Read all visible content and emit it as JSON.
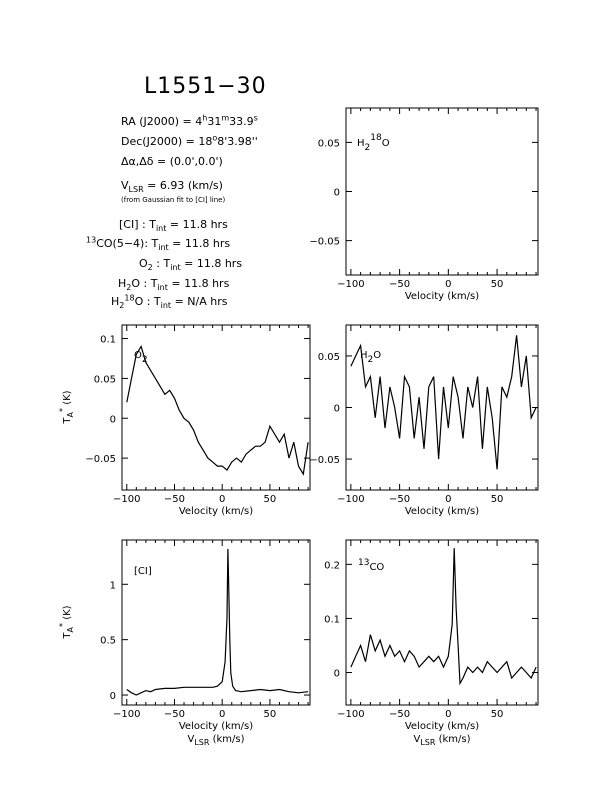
{
  "header": {
    "source_name": "L1551−30",
    "ra": "RA (J2000) = 4h31m33.9s",
    "dec": "Dec(J2000) = 18°8'3.98''",
    "offset": "Δα,Δδ = (0.0',0.0')",
    "vlsr": "VLSR = 6.93 (km/s)",
    "vlsr_note": "(from Gaussian fit to [CI] line)",
    "integrations": [
      "[CI] : Tint = 11.8 hrs",
      "13CO(5−4): Tint = 11.8 hrs",
      "O2 : Tint = 11.8 hrs",
      "H2O : Tint = 11.8 hrs",
      "H2 18O : Tint = N/A hrs"
    ]
  },
  "axis_labels": {
    "velocity": "Velocity (km/s)",
    "vlsr": "VLSR (km/s)",
    "ta": "TA* (K)"
  },
  "chart_data": [
    {
      "type": "line",
      "panel": "h218o",
      "label": "H2 18O",
      "x_ticks": [
        -100,
        -50,
        0,
        50
      ],
      "y_ticks": [
        0.05,
        0,
        -0.05
      ],
      "y_tick_labels": [
        "0.05",
        "0",
        "−0.05"
      ],
      "xlim": [
        -105,
        92
      ],
      "ylim": [
        -0.085,
        0.085
      ],
      "xlabel": "Velocity (km/s)",
      "ylabel": "",
      "series": [
        {
          "x": [],
          "y": []
        }
      ]
    },
    {
      "type": "line",
      "panel": "o2",
      "label": "O2",
      "x_ticks": [
        -100,
        -50,
        0,
        50
      ],
      "y_ticks": [
        0.1,
        0.05,
        0,
        -0.05
      ],
      "y_tick_labels": [
        "0.1",
        "0.05",
        "0",
        "−0.05"
      ],
      "xlim": [
        -105,
        92
      ],
      "ylim": [
        -0.09,
        0.117
      ],
      "xlabel": "Velocity (km/s)",
      "ylabel": "TA* (K)",
      "series": [
        {
          "x": [
            -100,
            -95,
            -90,
            -85,
            -80,
            -75,
            -70,
            -65,
            -60,
            -55,
            -50,
            -45,
            -40,
            -35,
            -30,
            -25,
            -20,
            -15,
            -10,
            -5,
            0,
            5,
            10,
            15,
            20,
            25,
            30,
            35,
            40,
            45,
            50,
            55,
            60,
            65,
            70,
            75,
            80,
            85,
            90
          ],
          "y": [
            0.02,
            0.05,
            0.08,
            0.09,
            0.07,
            0.06,
            0.05,
            0.04,
            0.03,
            0.035,
            0.025,
            0.01,
            0.0,
            -0.005,
            -0.015,
            -0.03,
            -0.04,
            -0.05,
            -0.055,
            -0.06,
            -0.06,
            -0.065,
            -0.055,
            -0.05,
            -0.055,
            -0.045,
            -0.04,
            -0.035,
            -0.035,
            -0.03,
            -0.01,
            -0.02,
            -0.03,
            -0.02,
            -0.05,
            -0.03,
            -0.06,
            -0.07,
            -0.03
          ]
        }
      ]
    },
    {
      "type": "line",
      "panel": "h2o",
      "label": "H2O",
      "x_ticks": [
        -100,
        -50,
        0,
        50
      ],
      "y_ticks": [
        0.05,
        0,
        -0.05
      ],
      "y_tick_labels": [
        "0.05",
        "0",
        "−0.05"
      ],
      "xlim": [
        -105,
        92
      ],
      "ylim": [
        -0.08,
        0.08
      ],
      "xlabel": "Velocity (km/s)",
      "ylabel": "",
      "series": [
        {
          "x": [
            -100,
            -95,
            -90,
            -85,
            -80,
            -75,
            -70,
            -65,
            -60,
            -55,
            -50,
            -45,
            -40,
            -35,
            -30,
            -25,
            -20,
            -15,
            -10,
            -5,
            0,
            5,
            10,
            15,
            20,
            25,
            30,
            35,
            40,
            45,
            50,
            55,
            60,
            65,
            70,
            75,
            80,
            85,
            90
          ],
          "y": [
            0.04,
            0.05,
            0.06,
            0.02,
            0.03,
            -0.01,
            0.03,
            -0.02,
            0.02,
            0.0,
            -0.03,
            0.03,
            0.02,
            -0.03,
            0.01,
            -0.04,
            0.02,
            0.03,
            -0.05,
            0.02,
            -0.02,
            0.03,
            0.01,
            -0.03,
            0.02,
            0.0,
            0.03,
            -0.04,
            0.02,
            -0.01,
            -0.06,
            0.02,
            0.01,
            0.03,
            0.07,
            0.02,
            0.05,
            -0.01,
            0.0
          ]
        }
      ]
    },
    {
      "type": "line",
      "panel": "ci",
      "label": "[CI]",
      "x_ticks": [
        -100,
        -50,
        0,
        50
      ],
      "y_ticks": [
        1,
        0.5,
        0
      ],
      "y_tick_labels": [
        "1",
        "0.5",
        "0"
      ],
      "xlim": [
        -105,
        92
      ],
      "ylim": [
        -0.09,
        1.4
      ],
      "xlabel": "Velocity (km/s)",
      "ylabel": "TA* (K)",
      "series": [
        {
          "x": [
            -100,
            -95,
            -90,
            -85,
            -80,
            -75,
            -70,
            -60,
            -50,
            -40,
            -30,
            -20,
            -10,
            -5,
            0,
            3,
            5,
            6,
            7,
            8,
            9,
            11,
            14,
            20,
            30,
            40,
            50,
            60,
            70,
            80,
            90
          ],
          "y": [
            0.05,
            0.02,
            0.0,
            0.02,
            0.04,
            0.03,
            0.05,
            0.06,
            0.06,
            0.07,
            0.07,
            0.07,
            0.07,
            0.08,
            0.12,
            0.3,
            0.7,
            1.32,
            0.9,
            0.5,
            0.2,
            0.08,
            0.04,
            0.03,
            0.04,
            0.05,
            0.04,
            0.05,
            0.03,
            0.02,
            0.03
          ]
        }
      ]
    },
    {
      "type": "line",
      "panel": "13co",
      "label": "13CO",
      "x_ticks": [
        -100,
        -50,
        0,
        50
      ],
      "y_ticks": [
        0.2,
        0.1,
        0
      ],
      "y_tick_labels": [
        "0.2",
        "0.1",
        "0"
      ],
      "xlim": [
        -105,
        92
      ],
      "ylim": [
        -0.06,
        0.245
      ],
      "xlabel": "Velocity (km/s)",
      "ylabel": "",
      "series": [
        {
          "x": [
            -100,
            -95,
            -90,
            -85,
            -80,
            -75,
            -70,
            -65,
            -60,
            -55,
            -50,
            -45,
            -40,
            -35,
            -30,
            -25,
            -20,
            -15,
            -10,
            -5,
            0,
            2,
            4,
            6,
            8,
            10,
            12,
            15,
            20,
            25,
            30,
            35,
            40,
            45,
            50,
            55,
            60,
            65,
            70,
            75,
            80,
            85,
            90
          ],
          "y": [
            0.01,
            0.03,
            0.05,
            0.02,
            0.07,
            0.04,
            0.06,
            0.03,
            0.05,
            0.03,
            0.04,
            0.02,
            0.04,
            0.03,
            0.01,
            0.02,
            0.03,
            0.02,
            0.03,
            0.01,
            0.03,
            0.06,
            0.09,
            0.23,
            0.12,
            0.05,
            -0.02,
            -0.01,
            0.01,
            0.0,
            0.01,
            0.0,
            0.02,
            0.01,
            0.0,
            0.01,
            0.02,
            -0.01,
            0.0,
            0.01,
            0.0,
            -0.01,
            0.01
          ]
        }
      ]
    }
  ]
}
